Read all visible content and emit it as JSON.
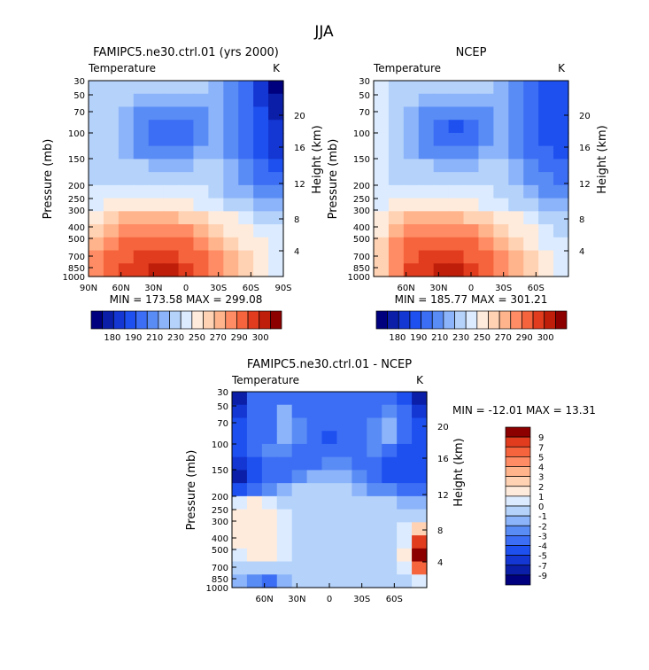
{
  "figure_title": "JJA",
  "chart_data": [
    {
      "type": "heatmap",
      "id": "model",
      "title": "FAMIPC5.ne30.ctrl.01 (yrs 2000)",
      "subtitle": "Temperature",
      "units": "K",
      "xlabel": "",
      "ylabel": "Pressure (mb)",
      "y2label": "Height (km)",
      "xlim": [
        90,
        -90
      ],
      "x_ticks": [
        {
          "value": 90,
          "label": "90N"
        },
        {
          "value": 60,
          "label": "60N"
        },
        {
          "value": 30,
          "label": "30N"
        },
        {
          "value": 0,
          "label": "0"
        },
        {
          "value": -30,
          "label": "30S"
        },
        {
          "value": -60,
          "label": "60S"
        },
        {
          "value": -90,
          "label": "90S"
        }
      ],
      "y_ticks": [
        "30",
        "50",
        "70",
        "100",
        "150",
        "200",
        "250",
        "300",
        "400",
        "500",
        "700",
        "850",
        "1000"
      ],
      "height_ticks": [
        "20",
        "16",
        "12",
        "8",
        "4"
      ],
      "stats": "MIN = 173.58   MAX = 299.08",
      "colorbar_labels": [
        "180",
        "190",
        "210",
        "230",
        "250",
        "270",
        "290",
        "300"
      ],
      "colors": [
        "#00007f",
        "#0a1ea8",
        "#1436d2",
        "#1e50f0",
        "#3c6ef5",
        "#5a8cf5",
        "#8cb4fa",
        "#b4d2fa",
        "#dcebff",
        "#ffebdc",
        "#ffd2b4",
        "#ffb48c",
        "#ff8c64",
        "#f5643c",
        "#e13c1e",
        "#be1e0a",
        "#8c0000"
      ],
      "field": [
        [
          7,
          7,
          7,
          7,
          7,
          7,
          7,
          7,
          6,
          5,
          4,
          2,
          0
        ],
        [
          7,
          7,
          7,
          6,
          6,
          6,
          6,
          6,
          6,
          5,
          4,
          2,
          1
        ],
        [
          7,
          7,
          6,
          5,
          5,
          5,
          5,
          5,
          6,
          5,
          4,
          3,
          1
        ],
        [
          7,
          7,
          6,
          5,
          4,
          4,
          4,
          5,
          6,
          5,
          4,
          3,
          2
        ],
        [
          7,
          7,
          6,
          5,
          4,
          4,
          4,
          5,
          6,
          5,
          4,
          3,
          2
        ],
        [
          7,
          7,
          6,
          5,
          5,
          5,
          5,
          6,
          6,
          5,
          4,
          3,
          2
        ],
        [
          7,
          7,
          7,
          7,
          6,
          6,
          6,
          7,
          7,
          6,
          5,
          4,
          3
        ],
        [
          7,
          7,
          7,
          7,
          7,
          7,
          7,
          7,
          7,
          6,
          5,
          4,
          4
        ],
        [
          8,
          8,
          8,
          8,
          8,
          8,
          8,
          8,
          7,
          6,
          6,
          5,
          5
        ],
        [
          8,
          9,
          9,
          9,
          9,
          9,
          9,
          8,
          8,
          7,
          7,
          6,
          6
        ],
        [
          9,
          10,
          11,
          11,
          11,
          11,
          10,
          10,
          9,
          9,
          8,
          7,
          7
        ],
        [
          10,
          11,
          12,
          12,
          12,
          12,
          12,
          11,
          10,
          9,
          9,
          8,
          8
        ],
        [
          11,
          12,
          13,
          13,
          13,
          13,
          13,
          12,
          11,
          10,
          9,
          9,
          8
        ],
        [
          12,
          13,
          13,
          14,
          14,
          14,
          13,
          13,
          12,
          11,
          10,
          9,
          8
        ],
        [
          12,
          13,
          14,
          14,
          15,
          15,
          14,
          13,
          12,
          11,
          10,
          9,
          8
        ]
      ]
    },
    {
      "type": "heatmap",
      "id": "obs",
      "title": "NCEP",
      "subtitle": "Temperature",
      "units": "K",
      "xlabel": "",
      "ylabel": "Pressure (mb)",
      "y2label": "Height (km)",
      "xlim": [
        90,
        -90
      ],
      "x_ticks": [
        {
          "value": 60,
          "label": "60N"
        },
        {
          "value": 30,
          "label": "30N"
        },
        {
          "value": 0,
          "label": "0"
        },
        {
          "value": -30,
          "label": "30S"
        },
        {
          "value": -60,
          "label": "60S"
        }
      ],
      "y_ticks": [
        "30",
        "50",
        "70",
        "100",
        "150",
        "200",
        "250",
        "300",
        "400",
        "500",
        "700",
        "850",
        "1000"
      ],
      "height_ticks": [
        "20",
        "16",
        "12",
        "8",
        "4"
      ],
      "stats": "MIN = 185.77   MAX = 301.21",
      "colorbar_labels": [
        "180",
        "190",
        "210",
        "230",
        "250",
        "270",
        "290",
        "300"
      ],
      "colors": [
        "#00007f",
        "#0a1ea8",
        "#1436d2",
        "#1e50f0",
        "#3c6ef5",
        "#5a8cf5",
        "#8cb4fa",
        "#b4d2fa",
        "#dcebff",
        "#ffebdc",
        "#ffd2b4",
        "#ffb48c",
        "#ff8c64",
        "#f5643c",
        "#e13c1e",
        "#be1e0a",
        "#8c0000"
      ],
      "field": [
        [
          8,
          7,
          7,
          7,
          7,
          7,
          7,
          7,
          6,
          5,
          4,
          3,
          3
        ],
        [
          8,
          7,
          7,
          6,
          6,
          6,
          6,
          6,
          6,
          5,
          4,
          3,
          3
        ],
        [
          8,
          7,
          6,
          5,
          5,
          5,
          5,
          5,
          6,
          5,
          4,
          3,
          3
        ],
        [
          8,
          7,
          6,
          5,
          4,
          3,
          4,
          5,
          6,
          5,
          4,
          3,
          3
        ],
        [
          8,
          7,
          6,
          5,
          4,
          4,
          4,
          5,
          6,
          5,
          4,
          3,
          3
        ],
        [
          8,
          7,
          6,
          5,
          5,
          5,
          5,
          6,
          6,
          5,
          4,
          4,
          3
        ],
        [
          8,
          7,
          7,
          7,
          6,
          6,
          6,
          7,
          7,
          6,
          5,
          4,
          4
        ],
        [
          8,
          7,
          7,
          7,
          7,
          7,
          7,
          7,
          7,
          6,
          5,
          5,
          4
        ],
        [
          8,
          8,
          8,
          8,
          8,
          8,
          8,
          8,
          7,
          7,
          6,
          5,
          5
        ],
        [
          8,
          9,
          9,
          9,
          9,
          9,
          9,
          8,
          8,
          7,
          7,
          6,
          6
        ],
        [
          9,
          10,
          11,
          11,
          11,
          11,
          10,
          10,
          9,
          9,
          8,
          7,
          7
        ],
        [
          9,
          11,
          12,
          12,
          12,
          12,
          12,
          11,
          10,
          9,
          9,
          8,
          7
        ],
        [
          10,
          12,
          13,
          13,
          13,
          13,
          13,
          12,
          11,
          10,
          9,
          8,
          8
        ],
        [
          10,
          12,
          13,
          14,
          14,
          14,
          13,
          13,
          12,
          11,
          10,
          9,
          8
        ],
        [
          10,
          12,
          14,
          14,
          15,
          15,
          14,
          13,
          12,
          11,
          10,
          9,
          8
        ]
      ]
    },
    {
      "type": "heatmap",
      "id": "diff",
      "title": "FAMIPC5.ne30.ctrl.01 - NCEP",
      "subtitle": "Temperature",
      "units": "K",
      "xlabel": "",
      "ylabel": "Pressure (mb)",
      "y2label": "Height (km)",
      "xlim": [
        90,
        -90
      ],
      "x_ticks": [
        {
          "value": 60,
          "label": "60N"
        },
        {
          "value": 30,
          "label": "30N"
        },
        {
          "value": 0,
          "label": "0"
        },
        {
          "value": -30,
          "label": "30S"
        },
        {
          "value": -60,
          "label": "60S"
        }
      ],
      "y_ticks": [
        "30",
        "50",
        "70",
        "100",
        "150",
        "200",
        "250",
        "300",
        "400",
        "500",
        "700",
        "850",
        "1000"
      ],
      "height_ticks": [
        "20",
        "16",
        "12",
        "8",
        "4"
      ],
      "stats": "MIN = -12.01   MAX =  13.31",
      "colorbar_labels": [
        "9",
        "7",
        "5",
        "4",
        "3",
        "2",
        "1",
        "0",
        "-1",
        "-2",
        "-3",
        "-4",
        "-5",
        "-7",
        "-9"
      ],
      "colors": [
        "#00007f",
        "#0a1ea8",
        "#1436d2",
        "#1e50f0",
        "#3c6ef5",
        "#5a8cf5",
        "#8cb4fa",
        "#b4d2fa",
        "#dcebff",
        "#ffebdc",
        "#ffd2b4",
        "#ffb48c",
        "#ff8c64",
        "#f5643c",
        "#e13c1e",
        "#8c0000"
      ],
      "field": [
        [
          1,
          4,
          4,
          4,
          4,
          4,
          4,
          4,
          4,
          4,
          4,
          3,
          1
        ],
        [
          2,
          4,
          4,
          6,
          4,
          4,
          4,
          4,
          4,
          4,
          5,
          4,
          2
        ],
        [
          3,
          4,
          4,
          6,
          5,
          4,
          4,
          4,
          4,
          5,
          6,
          4,
          3
        ],
        [
          3,
          4,
          4,
          6,
          5,
          4,
          3,
          4,
          4,
          5,
          6,
          4,
          3
        ],
        [
          3,
          4,
          5,
          5,
          4,
          4,
          4,
          4,
          4,
          5,
          4,
          3,
          3
        ],
        [
          2,
          3,
          4,
          4,
          4,
          4,
          5,
          5,
          4,
          4,
          3,
          3,
          3
        ],
        [
          1,
          3,
          4,
          4,
          5,
          6,
          6,
          6,
          5,
          4,
          3,
          3,
          3
        ],
        [
          3,
          4,
          5,
          6,
          7,
          7,
          7,
          7,
          6,
          5,
          5,
          4,
          4
        ],
        [
          8,
          9,
          8,
          7,
          7,
          7,
          7,
          7,
          7,
          7,
          7,
          6,
          6
        ],
        [
          9,
          9,
          9,
          8,
          7,
          7,
          7,
          7,
          7,
          7,
          7,
          7,
          7
        ],
        [
          9,
          9,
          9,
          8,
          7,
          7,
          7,
          7,
          7,
          7,
          7,
          8,
          10
        ],
        [
          9,
          9,
          9,
          8,
          7,
          7,
          7,
          7,
          7,
          7,
          7,
          8,
          14
        ],
        [
          8,
          9,
          9,
          8,
          7,
          7,
          7,
          7,
          7,
          7,
          7,
          9,
          15
        ],
        [
          7,
          7,
          7,
          7,
          7,
          7,
          7,
          7,
          7,
          7,
          7,
          8,
          13
        ],
        [
          6,
          5,
          4,
          6,
          7,
          7,
          7,
          7,
          7,
          7,
          7,
          7,
          8
        ]
      ]
    }
  ]
}
